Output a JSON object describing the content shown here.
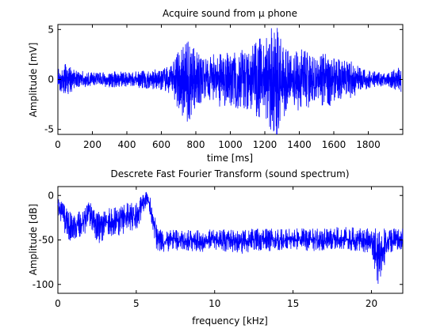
{
  "figure": {
    "background": "#ffffff",
    "line_color": "#0000ff"
  },
  "chart_data": [
    {
      "type": "line",
      "title": "Acquire sound from µ phone",
      "xlabel": "time [ms]",
      "ylabel": "Amplitude [mV]",
      "xlim": [
        0,
        2000
      ],
      "ylim": [
        -5.5,
        5.5
      ],
      "xticks": [
        0,
        200,
        400,
        600,
        800,
        1000,
        1200,
        1400,
        1600,
        1800
      ],
      "xtick_labels": [
        "0",
        "200",
        "400",
        "600",
        "800",
        "1000",
        "1200",
        "1400",
        "1600",
        "1800"
      ],
      "yticks": [
        -5,
        0,
        5
      ],
      "ytick_labels": [
        "-5",
        "0",
        "5"
      ],
      "grid": false,
      "series": [
        {
          "color": "#0000ff",
          "x": [
            0,
            50,
            100,
            200,
            300,
            400,
            500,
            600,
            650,
            700,
            750,
            770,
            800,
            850,
            900,
            950,
            1000,
            1050,
            1100,
            1150,
            1200,
            1250,
            1270,
            1300,
            1350,
            1400,
            1450,
            1500,
            1550,
            1600,
            1650,
            1700,
            1750,
            1800,
            1850,
            1900,
            1950,
            1990
          ],
          "envelope_upper": [
            1.2,
            1.6,
            1.0,
            0.7,
            0.8,
            0.8,
            0.9,
            1.1,
            1.4,
            3.0,
            4.0,
            3.6,
            2.9,
            2.0,
            2.6,
            2.8,
            2.6,
            3.0,
            3.0,
            3.8,
            4.6,
            5.4,
            5.6,
            4.2,
            2.4,
            3.4,
            2.9,
            1.9,
            3.0,
            2.7,
            1.9,
            2.0,
            1.2,
            1.0,
            0.8,
            0.6,
            1.0,
            1.3
          ],
          "envelope_lower": [
            -1.2,
            -1.6,
            -1.0,
            -0.7,
            -0.8,
            -0.8,
            -0.9,
            -1.1,
            -1.4,
            -3.0,
            -4.8,
            -3.8,
            -2.9,
            -2.0,
            -2.6,
            -2.8,
            -2.6,
            -3.0,
            -3.0,
            -3.8,
            -4.5,
            -5.6,
            -5.8,
            -4.2,
            -2.4,
            -3.4,
            -2.9,
            -1.9,
            -3.0,
            -2.7,
            -1.9,
            -2.0,
            -1.2,
            -1.0,
            -0.8,
            -0.6,
            -1.0,
            -1.3
          ]
        }
      ]
    },
    {
      "type": "line",
      "title": "Descrete Fast Fourier Transform (sound spectrum)",
      "xlabel": "frequency [kHz]",
      "ylabel": "Amplitude [dB]",
      "xlim": [
        0,
        22
      ],
      "ylim": [
        -110,
        10
      ],
      "xticks": [
        0,
        5,
        10,
        15,
        20
      ],
      "xtick_labels": [
        "0",
        "5",
        "10",
        "15",
        "20"
      ],
      "yticks": [
        -100,
        -50,
        0
      ],
      "ytick_labels": [
        "-100",
        "-50",
        "0"
      ],
      "grid": false,
      "series": [
        {
          "color": "#0000ff",
          "x": [
            0,
            0.3,
            0.6,
            1.0,
            1.5,
            1.8,
            2.0,
            2.2,
            2.5,
            3.0,
            3.5,
            4.0,
            4.5,
            5.0,
            5.3,
            5.5,
            5.7,
            5.9,
            6.1,
            6.3,
            6.6,
            7.0,
            8.0,
            9.0,
            10.0,
            11.0,
            12.0,
            13.0,
            14.0,
            15.0,
            16.0,
            17.0,
            18.0,
            19.0,
            20.0,
            20.5,
            21.0,
            22.0
          ],
          "envelope_upper": [
            0,
            -8,
            -15,
            -20,
            -15,
            -10,
            -4,
            -12,
            -18,
            -14,
            -13,
            -10,
            -8,
            -5,
            0,
            3,
            8,
            0,
            -15,
            -30,
            -40,
            -38,
            -38,
            -38,
            -38,
            -38,
            -38,
            -36,
            -38,
            -37,
            -37,
            -37,
            -35,
            -36,
            -37,
            -37,
            -36,
            -37
          ],
          "envelope_lower": [
            -20,
            -40,
            -50,
            -52,
            -48,
            -42,
            -35,
            -45,
            -55,
            -50,
            -48,
            -45,
            -42,
            -40,
            -28,
            -18,
            -12,
            -25,
            -45,
            -62,
            -65,
            -63,
            -62,
            -64,
            -63,
            -64,
            -66,
            -63,
            -62,
            -61,
            -63,
            -62,
            -62,
            -63,
            -65,
            -108,
            -64,
            -65
          ]
        }
      ]
    }
  ]
}
